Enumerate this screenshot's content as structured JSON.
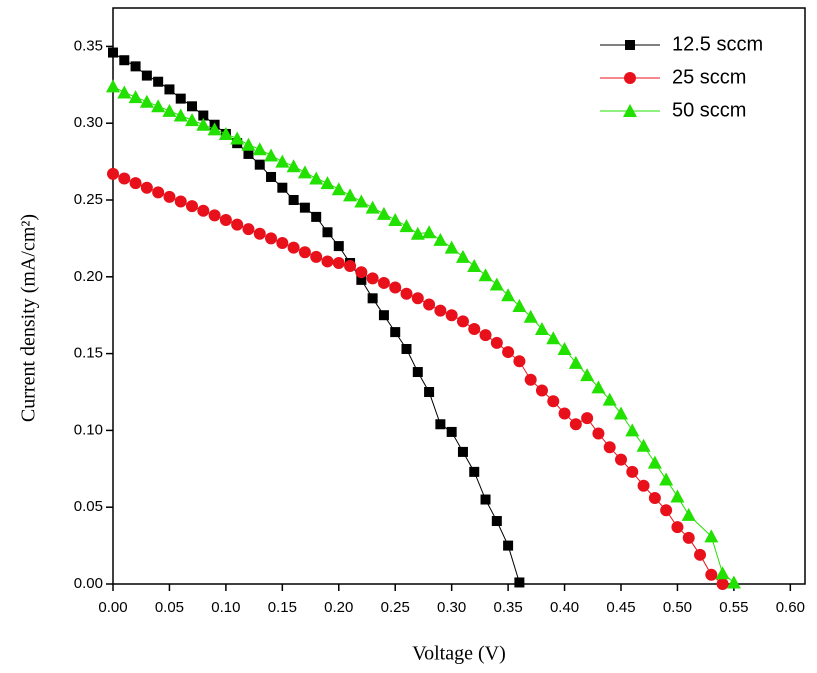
{
  "chart_data": {
    "type": "line",
    "x_label": "Voltage (V)",
    "y_label": "Current density (mA/cm²)",
    "xlim": [
      0,
      0.613
    ],
    "ylim": [
      0,
      0.375
    ],
    "xticks": [
      {
        "value": 0,
        "label": "0.00"
      },
      {
        "value": 0.05,
        "label": "0.05"
      },
      {
        "value": 0.1,
        "label": "0.10"
      },
      {
        "value": 0.15,
        "label": "0.15"
      },
      {
        "value": 0.2,
        "label": "0.20"
      },
      {
        "value": 0.25,
        "label": "0.25"
      },
      {
        "value": 0.3,
        "label": "0.30"
      },
      {
        "value": 0.35,
        "label": "0.35"
      },
      {
        "value": 0.4,
        "label": "0.40"
      },
      {
        "value": 0.45,
        "label": "0.45"
      },
      {
        "value": 0.5,
        "label": "0.50"
      },
      {
        "value": 0.55,
        "label": "0.55"
      },
      {
        "value": 0.6,
        "label": "0.60"
      }
    ],
    "yticks": [
      {
        "value": 0,
        "label": "0.00"
      },
      {
        "value": 0.05,
        "label": "0.05"
      },
      {
        "value": 0.1,
        "label": "0.10"
      },
      {
        "value": 0.15,
        "label": "0.15"
      },
      {
        "value": 0.2,
        "label": "0.20"
      },
      {
        "value": 0.25,
        "label": "0.25"
      },
      {
        "value": 0.3,
        "label": "0.30"
      },
      {
        "value": 0.35,
        "label": "0.35"
      }
    ],
    "legend": "upper-right",
    "series": [
      {
        "name": "12.5 sccm",
        "color": "#000000",
        "marker": "square",
        "x": [
          0,
          0.01,
          0.02,
          0.03,
          0.04,
          0.05,
          0.06,
          0.07,
          0.08,
          0.09,
          0.1,
          0.11,
          0.12,
          0.13,
          0.14,
          0.15,
          0.16,
          0.17,
          0.18,
          0.19,
          0.2,
          0.21,
          0.22,
          0.23,
          0.24,
          0.25,
          0.26,
          0.27,
          0.28,
          0.29,
          0.3,
          0.31,
          0.32,
          0.33,
          0.34,
          0.35,
          0.36
        ],
        "values": [
          0.346,
          0.341,
          0.337,
          0.331,
          0.327,
          0.322,
          0.316,
          0.311,
          0.305,
          0.299,
          0.293,
          0.287,
          0.28,
          0.273,
          0.265,
          0.258,
          0.25,
          0.245,
          0.239,
          0.229,
          0.22,
          0.209,
          0.198,
          0.186,
          0.175,
          0.164,
          0.153,
          0.138,
          0.125,
          0.104,
          0.099,
          0.086,
          0.073,
          0.055,
          0.041,
          0.025,
          0.001
        ]
      },
      {
        "name": "25 sccm",
        "color": "#e8101a",
        "marker": "circle",
        "x": [
          0,
          0.01,
          0.02,
          0.03,
          0.04,
          0.05,
          0.06,
          0.07,
          0.08,
          0.09,
          0.1,
          0.11,
          0.12,
          0.13,
          0.14,
          0.15,
          0.16,
          0.17,
          0.18,
          0.19,
          0.2,
          0.21,
          0.22,
          0.23,
          0.24,
          0.25,
          0.26,
          0.27,
          0.28,
          0.29,
          0.3,
          0.31,
          0.32,
          0.33,
          0.34,
          0.35,
          0.36,
          0.37,
          0.38,
          0.39,
          0.4,
          0.41,
          0.42,
          0.43,
          0.44,
          0.45,
          0.46,
          0.47,
          0.48,
          0.49,
          0.5,
          0.51,
          0.52,
          0.53,
          0.54
        ],
        "values": [
          0.267,
          0.264,
          0.261,
          0.258,
          0.255,
          0.252,
          0.249,
          0.246,
          0.243,
          0.24,
          0.237,
          0.234,
          0.231,
          0.228,
          0.225,
          0.222,
          0.219,
          0.216,
          0.213,
          0.21,
          0.209,
          0.207,
          0.203,
          0.199,
          0.196,
          0.193,
          0.189,
          0.186,
          0.182,
          0.178,
          0.175,
          0.171,
          0.166,
          0.162,
          0.157,
          0.151,
          0.145,
          0.133,
          0.126,
          0.119,
          0.111,
          0.104,
          0.108,
          0.098,
          0.089,
          0.081,
          0.073,
          0.064,
          0.056,
          0.048,
          0.037,
          0.03,
          0.019,
          0.006,
          0.0
        ]
      },
      {
        "name": "50 sccm",
        "color": "#22e000",
        "marker": "triangle",
        "x": [
          0,
          0.01,
          0.02,
          0.03,
          0.04,
          0.05,
          0.06,
          0.07,
          0.08,
          0.09,
          0.1,
          0.11,
          0.12,
          0.13,
          0.14,
          0.15,
          0.16,
          0.17,
          0.18,
          0.19,
          0.2,
          0.21,
          0.22,
          0.23,
          0.24,
          0.25,
          0.26,
          0.27,
          0.28,
          0.29,
          0.3,
          0.31,
          0.32,
          0.33,
          0.34,
          0.35,
          0.36,
          0.37,
          0.38,
          0.39,
          0.4,
          0.41,
          0.42,
          0.43,
          0.44,
          0.45,
          0.46,
          0.47,
          0.48,
          0.49,
          0.5,
          0.51,
          0.53,
          0.54,
          0.55
        ],
        "values": [
          0.324,
          0.32,
          0.317,
          0.314,
          0.311,
          0.308,
          0.305,
          0.302,
          0.299,
          0.296,
          0.293,
          0.29,
          0.286,
          0.283,
          0.279,
          0.275,
          0.272,
          0.268,
          0.264,
          0.261,
          0.257,
          0.253,
          0.249,
          0.245,
          0.241,
          0.237,
          0.233,
          0.228,
          0.229,
          0.224,
          0.219,
          0.213,
          0.207,
          0.201,
          0.195,
          0.188,
          0.181,
          0.174,
          0.166,
          0.16,
          0.153,
          0.144,
          0.136,
          0.128,
          0.12,
          0.111,
          0.1,
          0.09,
          0.079,
          0.068,
          0.057,
          0.045,
          0.031,
          0.007,
          0.001
        ]
      }
    ]
  }
}
